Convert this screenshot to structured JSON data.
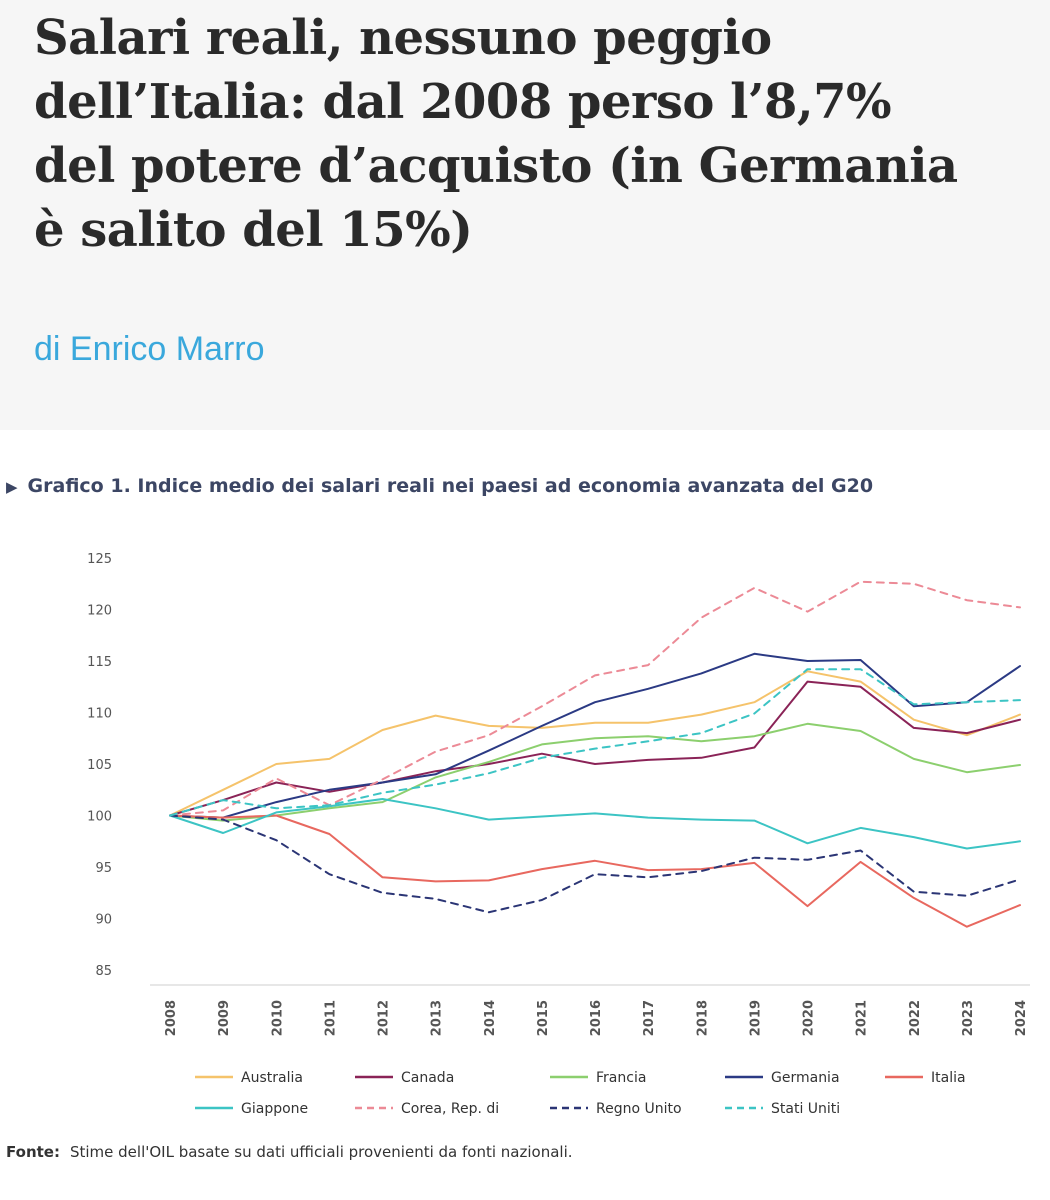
{
  "article": {
    "headline_lines": [
      "Salari reali, nessuno peggio",
      "dell’Italia: dal 2008 perso l’8,7%",
      "del potere d’acquisto (in Germania",
      "è salito del 15%)"
    ],
    "byline": "di Enrico Marro"
  },
  "figure": {
    "source_label": "Fonte:",
    "source_text": "Stime dell'OIL basate su dati ufficiali provenienti da fonti nazionali."
  },
  "chart_data": {
    "type": "line",
    "title": "Grafico 1. Indice medio dei salari reali nei paesi ad economia avanzata del G20",
    "xlabel": "",
    "ylabel": "",
    "ylim": [
      85,
      125
    ],
    "yticks": [
      85,
      90,
      95,
      100,
      105,
      110,
      115,
      120,
      125
    ],
    "grid": false,
    "legend_position": "bottom",
    "x": [
      "2008",
      "2009",
      "2010",
      "2011",
      "2012",
      "2013",
      "2014",
      "2015",
      "2016",
      "2017",
      "2018",
      "2019",
      "2020",
      "2021",
      "2022",
      "2023",
      "2024"
    ],
    "series": [
      {
        "name": "Australia",
        "color": "#f5c36b",
        "dash": false,
        "values": [
          100,
          102.5,
          105.0,
          105.5,
          108.3,
          109.7,
          108.7,
          108.5,
          109.0,
          109.0,
          109.8,
          111.0,
          114.0,
          113.0,
          109.3,
          107.8,
          109.8
        ]
      },
      {
        "name": "Canada",
        "color": "#8a2357",
        "dash": false,
        "values": [
          100,
          101.5,
          103.2,
          102.3,
          103.2,
          104.3,
          105.0,
          106.0,
          105.0,
          105.4,
          105.6,
          106.6,
          113.0,
          112.5,
          108.5,
          108.0,
          109.3
        ]
      },
      {
        "name": "Francia",
        "color": "#8ccf6e",
        "dash": false,
        "values": [
          100,
          99.5,
          100.0,
          100.7,
          101.3,
          103.7,
          105.2,
          106.9,
          107.5,
          107.7,
          107.2,
          107.7,
          108.9,
          108.2,
          105.5,
          104.2,
          104.9
        ]
      },
      {
        "name": "Germania",
        "color": "#2b3a84",
        "dash": false,
        "values": [
          100,
          99.8,
          101.3,
          102.5,
          103.2,
          104.0,
          106.3,
          108.7,
          111.0,
          112.3,
          113.8,
          115.7,
          115.0,
          115.1,
          110.6,
          111.0,
          114.5
        ]
      },
      {
        "name": "Italia",
        "color": "#e8685f",
        "dash": false,
        "values": [
          100,
          99.8,
          100.0,
          98.2,
          94.0,
          93.6,
          93.7,
          94.8,
          95.6,
          94.7,
          94.8,
          95.4,
          91.2,
          95.5,
          92.0,
          89.2,
          91.3
        ]
      },
      {
        "name": "Giappone",
        "color": "#3cc4c4",
        "dash": false,
        "values": [
          100,
          98.3,
          100.3,
          100.9,
          101.6,
          100.7,
          99.6,
          99.9,
          100.2,
          99.8,
          99.6,
          99.5,
          97.3,
          98.8,
          97.9,
          96.8,
          97.5
        ]
      },
      {
        "name": "Corea, Rep. di",
        "color": "#ec8a96",
        "dash": true,
        "values": [
          100,
          100.5,
          103.6,
          101.0,
          103.5,
          106.2,
          107.8,
          110.6,
          113.6,
          114.6,
          119.2,
          122.1,
          119.8,
          122.7,
          122.5,
          120.9,
          120.2
        ]
      },
      {
        "name": "Regno Unito",
        "color": "#2b3575",
        "dash": true,
        "values": [
          100,
          99.6,
          97.6,
          94.3,
          92.5,
          91.9,
          90.6,
          91.8,
          94.3,
          94.0,
          94.6,
          95.9,
          95.7,
          96.6,
          92.6,
          92.2,
          93.8
        ]
      },
      {
        "name": "Stati Uniti",
        "color": "#3cc4c4",
        "dash": true,
        "values": [
          100,
          101.5,
          100.7,
          101.0,
          102.2,
          103.0,
          104.1,
          105.6,
          106.5,
          107.2,
          108.0,
          109.9,
          114.2,
          114.2,
          110.8,
          111.0,
          111.2
        ]
      }
    ]
  }
}
